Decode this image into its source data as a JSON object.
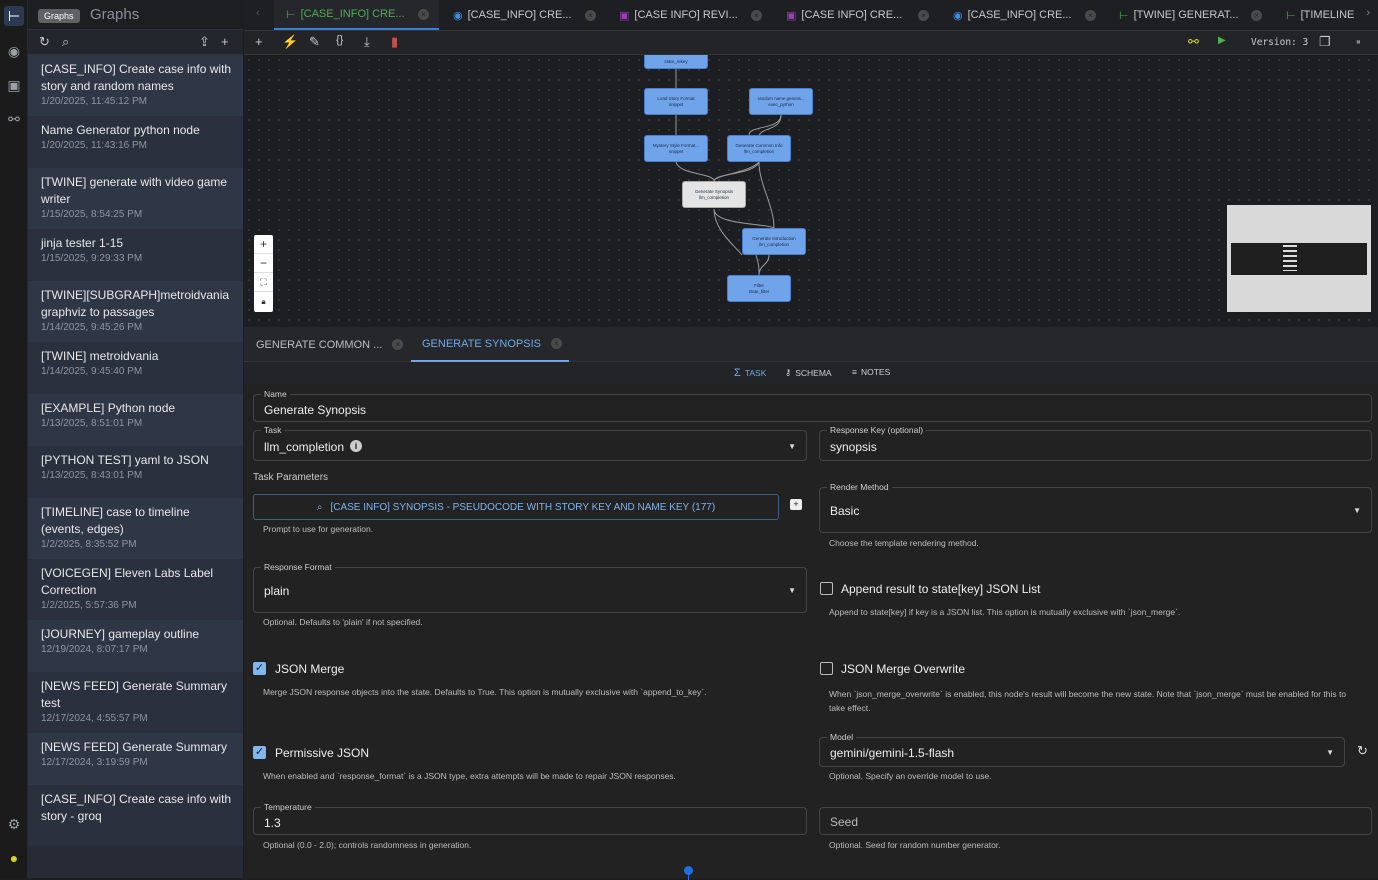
{
  "rail": {
    "icons": [
      "graph-icon",
      "eye-icon",
      "comment-plus-icon",
      "webhook-icon",
      "gear-icon",
      "account-icon"
    ],
    "tooltip": "Graphs"
  },
  "sidebar": {
    "title": "Graphs",
    "items": [
      {
        "name": "[CASE_INFO] Create case info with story and random names",
        "date": "1/20/2025, 11:45:12 PM"
      },
      {
        "name": "Name Generator python node",
        "date": "1/20/2025, 11:43:16 PM"
      },
      {
        "name": "[TWINE] generate with video game writer",
        "date": "1/15/2025, 8:54:25 PM"
      },
      {
        "name": "jinja tester 1-15",
        "date": "1/15/2025, 9:29:33 PM"
      },
      {
        "name": "[TWINE][SUBGRAPH]metroidvania graphviz to passages",
        "date": "1/14/2025, 9:45:26 PM"
      },
      {
        "name": "[TWINE] metroidvania",
        "date": "1/14/2025, 9:45:40 PM"
      },
      {
        "name": "[EXAMPLE] Python node",
        "date": "1/13/2025, 8:51:01 PM"
      },
      {
        "name": "[PYTHON TEST] yaml to JSON",
        "date": "1/13/2025, 8:43:01 PM"
      },
      {
        "name": "[TIMELINE] case to timeline (events, edges)",
        "date": "1/2/2025, 8:35:52 PM"
      },
      {
        "name": "[VOICEGEN] Eleven Labs Label Correction",
        "date": "1/2/2025, 5:57:36 PM"
      },
      {
        "name": "[JOURNEY] gameplay outline",
        "date": "12/19/2024, 8:07:17 PM"
      },
      {
        "name": "[NEWS FEED] Generate Summary test",
        "date": "12/17/2024, 4:55:57 PM"
      },
      {
        "name": "[NEWS FEED] Generate Summary",
        "date": "12/17/2024, 3:19:59 PM"
      },
      {
        "name": "[CASE_INFO] Create case info with story - groq",
        "date": ""
      }
    ]
  },
  "tabs": [
    {
      "label": "[CASE_INFO] CRE...",
      "icon": "graph-icon",
      "color": "#4caf50",
      "active": true
    },
    {
      "label": "[CASE_INFO] CRE...",
      "icon": "eye-icon",
      "color": "#3d8fe0"
    },
    {
      "label": "[CASE INFO] REVI...",
      "icon": "comment-plus-icon",
      "color": "#9c3fb5"
    },
    {
      "label": "[CASE INFO] CRE...",
      "icon": "comment-plus-icon",
      "color": "#9c3fb5"
    },
    {
      "label": "[CASE_INFO] CRE...",
      "icon": "eye-icon",
      "color": "#3d8fe0"
    },
    {
      "label": "[TWINE] GENERAT...",
      "icon": "graph-icon",
      "color": "#4caf50"
    },
    {
      "label": "[TIMELINE",
      "icon": "graph-icon",
      "color": "#4caf50"
    }
  ],
  "toolbar": {
    "version": "Version: 3"
  },
  "graph": {
    "nodes": [
      {
        "title": "state_rekey",
        "type": ""
      },
      {
        "title": "Load Story Format",
        "type": "snippet"
      },
      {
        "title": "random name genera...",
        "type": "exec_python"
      },
      {
        "title": "Mystery Style Format...",
        "type": "snippet"
      },
      {
        "title": "Generate Common Info",
        "type": "llm_completion"
      },
      {
        "title": "Generate Synopsis",
        "type": "llm_completion"
      },
      {
        "title": "Generate Introduction",
        "type": "llm_completion"
      },
      {
        "title": "Filter",
        "type": "state_filter"
      }
    ]
  },
  "node_tabs": [
    {
      "label": "GENERATE COMMON ..."
    },
    {
      "label": "GENERATE SYNOPSIS",
      "active": true
    }
  ],
  "sub_tabs": [
    "TASK",
    "SCHEMA",
    "NOTES"
  ],
  "form": {
    "name": {
      "label": "Name",
      "value": "Generate Synopsis"
    },
    "task": {
      "label": "Task",
      "value": "llm_completion"
    },
    "response_key": {
      "label": "Response Key (optional)",
      "value": "synopsis"
    },
    "task_params_label": "Task Parameters",
    "prompt": {
      "value": "[CASE INFO] SYNOPSIS - PSEUDOCODE WITH STORY KEY AND NAME KEY (177)",
      "help": "Prompt to use for generation."
    },
    "render_method": {
      "label": "Render Method",
      "value": "Basic",
      "help": "Choose the template rendering method."
    },
    "response_format": {
      "label": "Response Format",
      "value": "plain",
      "help": "Optional. Defaults to 'plain' if not specified."
    },
    "append": {
      "label": "Append result to state[key] JSON List",
      "checked": false,
      "help": "Append to state[key] if key is a JSON list. This option is mutually exclusive with `json_merge`."
    },
    "json_merge": {
      "label": "JSON Merge",
      "checked": true,
      "help": "Merge JSON response objects into the state. Defaults to True. This option is mutually exclusive with `append_to_key`."
    },
    "json_merge_overwrite": {
      "label": "JSON Merge Overwrite",
      "checked": false,
      "help": "When `json_merge_overwrite` is enabled, this node's result will become the new state. Note that `json_merge` must be enabled for this to take effect."
    },
    "permissive_json": {
      "label": "Permissive JSON",
      "checked": true,
      "help": "When enabled and `response_format` is a JSON type, extra attempts will be made to repair JSON responses."
    },
    "model": {
      "label": "Model",
      "value": "gemini/gemini-1.5-flash",
      "help": "Optional. Specify an override model to use."
    },
    "temperature": {
      "label": "Temperature",
      "value": "1.3",
      "help": "Optional (0.0 - 2.0); controls randomness in generation."
    },
    "seed": {
      "placeholder": "Seed",
      "help": "Optional. Seed for random number generator."
    }
  },
  "colors": {
    "accent": "#6fa8e8",
    "node": "#6fa3ea",
    "active_tab": "#4caf50"
  }
}
